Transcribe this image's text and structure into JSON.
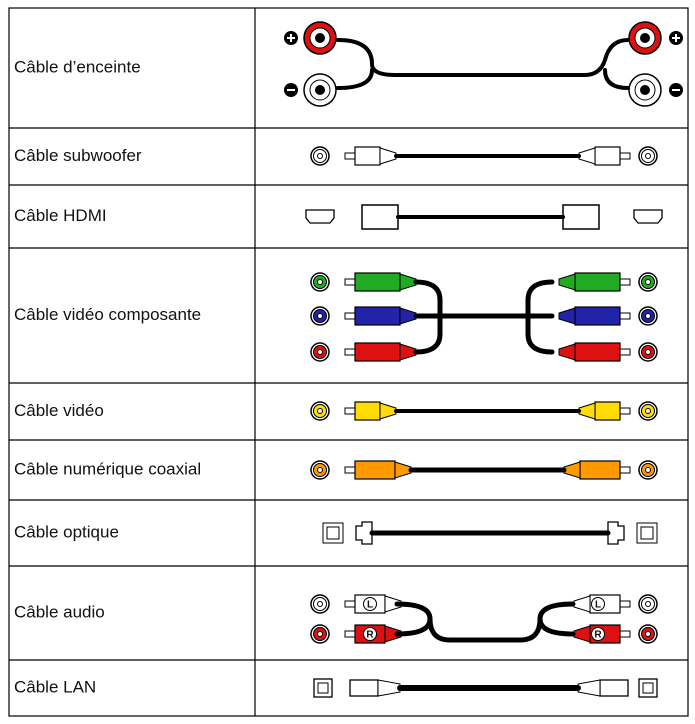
{
  "table": {
    "rows": [
      "Câble d’enceinte",
      "Câble subwoofer",
      "Câble HDMI",
      "Câble vidéo composante",
      "Câble vidéo",
      "Câble numérique coaxial",
      "Câble optique",
      "Câble audio",
      "Câble LAN"
    ]
  },
  "audio_markers": [
    "L",
    "R"
  ]
}
